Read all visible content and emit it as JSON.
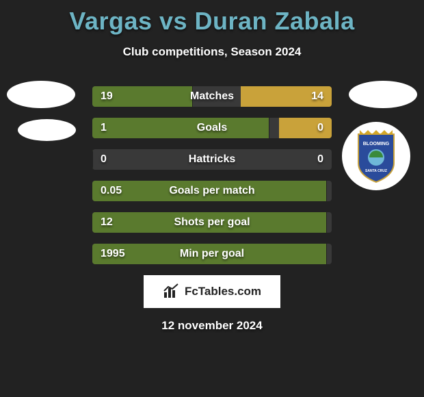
{
  "title": "Vargas vs Duran Zabala",
  "subtitle": "Club competitions, Season 2024",
  "date": "12 november 2024",
  "logo_text": "FcTables.com",
  "colors": {
    "background": "#222222",
    "title": "#6db4c4",
    "bar_left": "#5a7a2e",
    "bar_right": "#c9a23a",
    "bar_track": "#393939",
    "text": "#ffffff"
  },
  "crest": {
    "shield_fill": "#2a4b9b",
    "crown_fill": "#d4a728",
    "text_top": "BLOOMING",
    "text_bottom": "SANTA CRUZ"
  },
  "stats": [
    {
      "label": "Matches",
      "left_val": "19",
      "right_val": "14",
      "left_pct": 42,
      "right_pct": 38
    },
    {
      "label": "Goals",
      "left_val": "1",
      "right_val": "0",
      "left_pct": 74,
      "right_pct": 22
    },
    {
      "label": "Hattricks",
      "left_val": "0",
      "right_val": "0",
      "left_pct": 0,
      "right_pct": 0
    },
    {
      "label": "Goals per match",
      "left_val": "0.05",
      "right_val": "",
      "left_pct": 98,
      "right_pct": 0
    },
    {
      "label": "Shots per goal",
      "left_val": "12",
      "right_val": "",
      "left_pct": 98,
      "right_pct": 0
    },
    {
      "label": "Min per goal",
      "left_val": "1995",
      "right_val": "",
      "left_pct": 98,
      "right_pct": 0
    }
  ]
}
